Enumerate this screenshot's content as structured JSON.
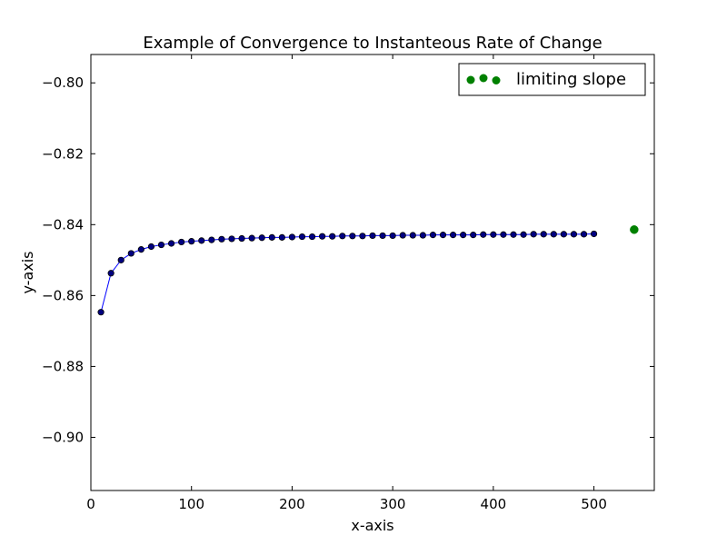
{
  "chart_data": {
    "type": "scatter",
    "title": "Example of Convergence to Instanteous Rate of Change",
    "xlabel": "x-axis",
    "ylabel": "y-axis",
    "xlim": [
      0,
      560
    ],
    "ylim": [
      -0.915,
      -0.792
    ],
    "xticks": [
      0,
      100,
      200,
      300,
      400,
      500
    ],
    "yticks": [
      -0.8,
      -0.82,
      -0.84,
      -0.86,
      -0.88,
      -0.9
    ],
    "xtick_labels": [
      "0",
      "100",
      "200",
      "300",
      "400",
      "500"
    ],
    "ytick_labels": [
      "−0.80",
      "−0.82",
      "−0.84",
      "−0.86",
      "−0.88",
      "−0.90"
    ],
    "grid": false,
    "legend_position": "top-right",
    "series": [
      {
        "color": "#0000ff",
        "marker_color": "#000080",
        "x": [
          10,
          20,
          30,
          40,
          50,
          60,
          70,
          80,
          90,
          100,
          110,
          120,
          130,
          140,
          150,
          160,
          170,
          180,
          190,
          200,
          210,
          220,
          230,
          240,
          250,
          260,
          270,
          280,
          290,
          300,
          310,
          320,
          330,
          340,
          350,
          360,
          370,
          380,
          390,
          400,
          410,
          420,
          430,
          440,
          450,
          460,
          470,
          480,
          490,
          500
        ],
        "y": [
          -0.8647,
          -0.8537,
          -0.85,
          -0.8481,
          -0.847,
          -0.8462,
          -0.8457,
          -0.8453,
          -0.8449,
          -0.8447,
          -0.8445,
          -0.8443,
          -0.8441,
          -0.844,
          -0.8439,
          -0.8438,
          -0.8437,
          -0.8436,
          -0.8436,
          -0.8435,
          -0.8434,
          -0.8434,
          -0.8433,
          -0.8433,
          -0.8432,
          -0.8432,
          -0.8432,
          -0.8431,
          -0.8431,
          -0.8431,
          -0.843,
          -0.843,
          -0.843,
          -0.8429,
          -0.8429,
          -0.8429,
          -0.8429,
          -0.8429,
          -0.8428,
          -0.8428,
          -0.8428,
          -0.8428,
          -0.8428,
          -0.8427,
          -0.8427,
          -0.8427,
          -0.8427,
          -0.8427,
          -0.8427,
          -0.8426
        ]
      },
      {
        "name": "limiting slope",
        "color": "#008000",
        "x": [
          540
        ],
        "y": [
          -0.8414
        ]
      }
    ]
  }
}
